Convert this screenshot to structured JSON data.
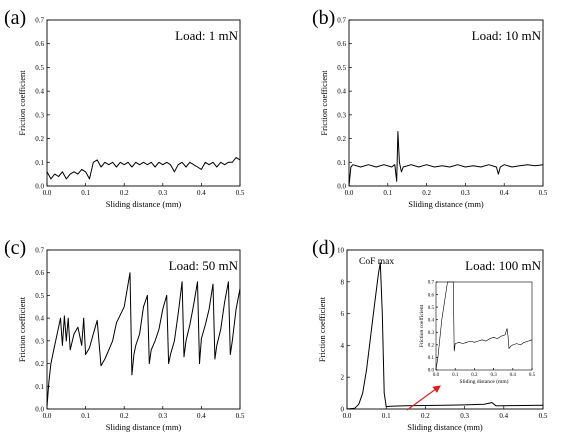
{
  "chart_data": [
    {
      "type": "line",
      "panel_label": "(a)",
      "annotation": "Load: 1 mN",
      "xlabel": "Sliding distance (mm)",
      "ylabel": "Friction coefficient",
      "xlim": [
        0,
        0.5
      ],
      "ylim": [
        0,
        0.7
      ],
      "xticks": [
        "0.0",
        "0.1",
        "0.2",
        "0.3",
        "0.4",
        "0.5"
      ],
      "yticks": [
        "0.0",
        "0.1",
        "0.2",
        "0.3",
        "0.4",
        "0.5",
        "0.6",
        "0.7"
      ],
      "x": [
        0,
        0.01,
        0.02,
        0.03,
        0.04,
        0.05,
        0.06,
        0.07,
        0.08,
        0.09,
        0.1,
        0.11,
        0.12,
        0.13,
        0.14,
        0.15,
        0.16,
        0.17,
        0.18,
        0.19,
        0.2,
        0.21,
        0.22,
        0.23,
        0.24,
        0.25,
        0.26,
        0.27,
        0.28,
        0.29,
        0.3,
        0.31,
        0.32,
        0.33,
        0.34,
        0.35,
        0.36,
        0.37,
        0.38,
        0.39,
        0.4,
        0.41,
        0.42,
        0.43,
        0.44,
        0.45,
        0.46,
        0.47,
        0.48,
        0.49,
        0.5
      ],
      "y": [
        0.06,
        0.03,
        0.05,
        0.04,
        0.06,
        0.03,
        0.05,
        0.06,
        0.05,
        0.07,
        0.06,
        0.03,
        0.1,
        0.11,
        0.08,
        0.1,
        0.09,
        0.1,
        0.08,
        0.1,
        0.09,
        0.1,
        0.08,
        0.1,
        0.09,
        0.1,
        0.09,
        0.1,
        0.08,
        0.1,
        0.09,
        0.1,
        0.09,
        0.06,
        0.09,
        0.1,
        0.08,
        0.1,
        0.09,
        0.08,
        0.07,
        0.1,
        0.09,
        0.1,
        0.08,
        0.1,
        0.09,
        0.1,
        0.1,
        0.12,
        0.11
      ]
    },
    {
      "type": "line",
      "panel_label": "(b)",
      "annotation": "Load: 10 mN",
      "xlabel": "Sliding distance (mm)",
      "ylabel": "Friction coefficient",
      "xlim": [
        0,
        0.5
      ],
      "ylim": [
        0,
        0.7
      ],
      "xticks": [
        "0.0",
        "0.1",
        "0.2",
        "0.3",
        "0.4",
        "0.5"
      ],
      "yticks": [
        "0.0",
        "0.1",
        "0.2",
        "0.3",
        "0.4",
        "0.5",
        "0.6",
        "0.7"
      ],
      "x": [
        0,
        0.005,
        0.01,
        0.03,
        0.05,
        0.07,
        0.09,
        0.11,
        0.118,
        0.123,
        0.126,
        0.13,
        0.135,
        0.14,
        0.16,
        0.18,
        0.2,
        0.22,
        0.24,
        0.26,
        0.28,
        0.3,
        0.32,
        0.34,
        0.36,
        0.38,
        0.385,
        0.39,
        0.4,
        0.42,
        0.44,
        0.46,
        0.48,
        0.5
      ],
      "y": [
        0,
        0.08,
        0.09,
        0.08,
        0.09,
        0.08,
        0.09,
        0.08,
        0.09,
        0.02,
        0.23,
        0.1,
        0.06,
        0.08,
        0.09,
        0.08,
        0.09,
        0.08,
        0.085,
        0.08,
        0.09,
        0.08,
        0.085,
        0.08,
        0.09,
        0.08,
        0.05,
        0.08,
        0.09,
        0.08,
        0.085,
        0.09,
        0.085,
        0.09
      ]
    },
    {
      "type": "line",
      "panel_label": "(c)",
      "annotation": "Load: 50 mN",
      "xlabel": "Sliding distance (mm)",
      "ylabel": "Friction coefficient",
      "xlim": [
        0,
        0.5
      ],
      "ylim": [
        0,
        0.7
      ],
      "xticks": [
        "0.0",
        "0.1",
        "0.2",
        "0.3",
        "0.4",
        "0.5"
      ],
      "yticks": [
        "0.0",
        "0.1",
        "0.2",
        "0.3",
        "0.4",
        "0.5",
        "0.6",
        "0.7"
      ],
      "x": [
        0,
        0.005,
        0.01,
        0.02,
        0.03,
        0.035,
        0.04,
        0.045,
        0.05,
        0.055,
        0.06,
        0.07,
        0.08,
        0.09,
        0.095,
        0.1,
        0.11,
        0.12,
        0.13,
        0.14,
        0.15,
        0.16,
        0.17,
        0.18,
        0.2,
        0.215,
        0.22,
        0.225,
        0.23,
        0.24,
        0.25,
        0.26,
        0.265,
        0.27,
        0.28,
        0.29,
        0.3,
        0.31,
        0.315,
        0.32,
        0.33,
        0.34,
        0.35,
        0.355,
        0.36,
        0.37,
        0.38,
        0.39,
        0.395,
        0.4,
        0.41,
        0.42,
        0.43,
        0.435,
        0.44,
        0.45,
        0.46,
        0.47,
        0.475,
        0.48,
        0.49,
        0.5
      ],
      "y": [
        0.01,
        0.12,
        0.2,
        0.28,
        0.36,
        0.4,
        0.28,
        0.41,
        0.3,
        0.4,
        0.26,
        0.33,
        0.36,
        0.28,
        0.4,
        0.24,
        0.27,
        0.33,
        0.39,
        0.19,
        0.22,
        0.26,
        0.3,
        0.38,
        0.45,
        0.6,
        0.15,
        0.24,
        0.28,
        0.33,
        0.45,
        0.5,
        0.2,
        0.26,
        0.3,
        0.35,
        0.44,
        0.5,
        0.2,
        0.24,
        0.3,
        0.42,
        0.56,
        0.23,
        0.3,
        0.37,
        0.46,
        0.56,
        0.2,
        0.31,
        0.37,
        0.44,
        0.55,
        0.22,
        0.28,
        0.35,
        0.47,
        0.56,
        0.24,
        0.3,
        0.44,
        0.53
      ]
    },
    {
      "type": "line",
      "panel_label": "(d)",
      "annotation": "Load: 100 mN",
      "note": "CoF max",
      "xlabel": "Sliding distance (mm)",
      "ylabel": "Friction coefficient",
      "xlim": [
        0,
        0.5
      ],
      "ylim": [
        0,
        10
      ],
      "xticks": [
        "0.0",
        "0.1",
        "0.2",
        "0.3",
        "0.4",
        "0.5"
      ],
      "yticks": [
        "0",
        "2",
        "4",
        "6",
        "8",
        "10"
      ],
      "x": [
        0,
        0.02,
        0.03,
        0.04,
        0.05,
        0.06,
        0.07,
        0.08,
        0.085,
        0.09,
        0.095,
        0.1,
        0.11,
        0.15,
        0.2,
        0.25,
        0.3,
        0.35,
        0.37,
        0.38,
        0.4,
        0.45,
        0.5
      ],
      "y": [
        0,
        0.05,
        0.3,
        1.0,
        2.5,
        4.5,
        6.5,
        8.5,
        9.2,
        6.0,
        1.0,
        0.15,
        0.17,
        0.2,
        0.22,
        0.23,
        0.26,
        0.3,
        0.4,
        0.2,
        0.21,
        0.22,
        0.24
      ],
      "inset": {
        "xlabel": "Sliding distance (mm)",
        "ylabel": "Friction coefficient",
        "xlim": [
          0,
          0.5
        ],
        "ylim": [
          0,
          0.7
        ],
        "xticks": [
          "0.0",
          "0.1",
          "0.2",
          "0.3",
          "0.4",
          "0.5"
        ],
        "yticks": [
          "0.0",
          "0.1",
          "0.2",
          "0.3",
          "0.4",
          "0.5",
          "0.6",
          "0.7"
        ],
        "x": [
          0,
          0.01,
          0.03,
          0.05,
          0.06,
          0.065,
          0.07,
          0.09,
          0.095,
          0.1,
          0.12,
          0.14,
          0.16,
          0.18,
          0.2,
          0.22,
          0.24,
          0.26,
          0.28,
          0.3,
          0.32,
          0.34,
          0.36,
          0.37,
          0.375,
          0.38,
          0.39,
          0.4,
          0.42,
          0.44,
          0.46,
          0.48,
          0.5
        ],
        "y": [
          0,
          0.1,
          0.4,
          0.6,
          0.7,
          0.7,
          0.7,
          0.7,
          0.15,
          0.21,
          0.22,
          0.21,
          0.22,
          0.23,
          0.22,
          0.23,
          0.24,
          0.23,
          0.25,
          0.26,
          0.25,
          0.27,
          0.28,
          0.33,
          0.27,
          0.17,
          0.19,
          0.2,
          0.21,
          0.2,
          0.22,
          0.23,
          0.24
        ]
      }
    }
  ]
}
